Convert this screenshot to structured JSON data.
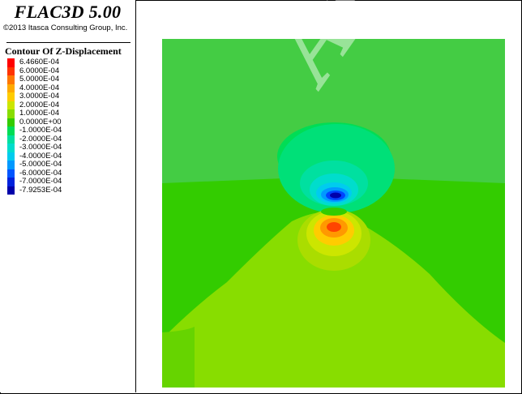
{
  "app": {
    "title": "FLAC3D 5.00",
    "copyright": "©2013 Itasca Consulting Group, Inc."
  },
  "legend": {
    "title": "Contour Of Z-Displacement",
    "items": [
      {
        "value": "6.4660E-04",
        "color": "#ff0000"
      },
      {
        "value": "6.0000E-04",
        "color": "#ff3300"
      },
      {
        "value": "5.0000E-04",
        "color": "#ff7700"
      },
      {
        "value": "4.0000E-04",
        "color": "#ffaa00"
      },
      {
        "value": "3.0000E-04",
        "color": "#ffcc00"
      },
      {
        "value": "2.0000E-04",
        "color": "#cce600"
      },
      {
        "value": "1.0000E-04",
        "color": "#88dd00"
      },
      {
        "value": "0.0000E+00",
        "color": "#33cc00"
      },
      {
        "value": "-1.0000E-04",
        "color": "#00dd55"
      },
      {
        "value": "-2.0000E-04",
        "color": "#00e0a0"
      },
      {
        "value": "-3.0000E-04",
        "color": "#00ddcc"
      },
      {
        "value": "-4.0000E-04",
        "color": "#00ccee"
      },
      {
        "value": "-5.0000E-04",
        "color": "#0099ff"
      },
      {
        "value": "-6.0000E-04",
        "color": "#0055ff"
      },
      {
        "value": "-7.0000E-04",
        "color": "#0022dd"
      },
      {
        "value": "-7.9253E-04",
        "color": "#0000aa"
      }
    ]
  },
  "watermark": "Arch"
}
